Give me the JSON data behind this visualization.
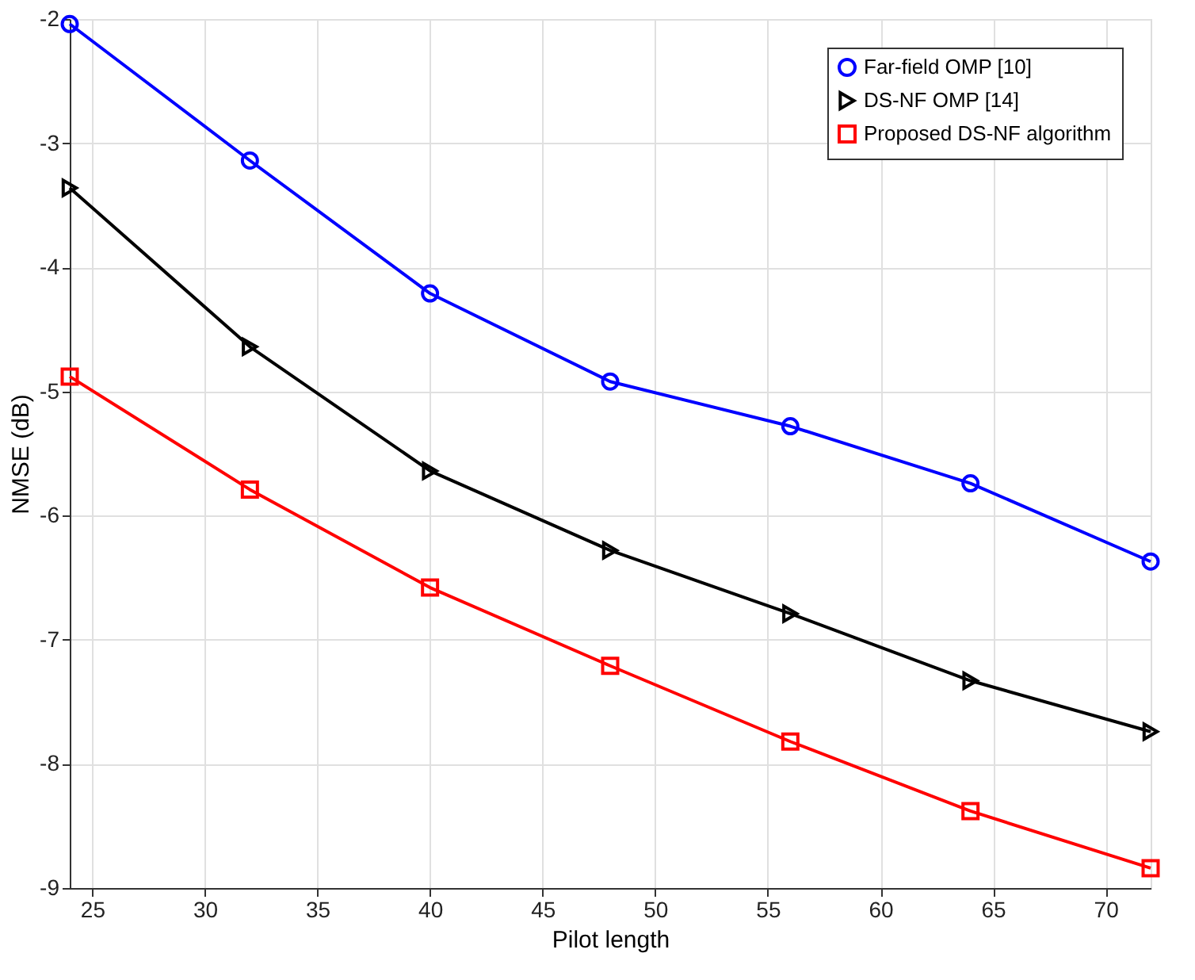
{
  "chart_data": {
    "type": "line",
    "xlabel": "Pilot length",
    "ylabel": "NMSE (dB)",
    "x": [
      24,
      32,
      40,
      48,
      56,
      64,
      72
    ],
    "series": [
      {
        "name": "Far-field OMP [10]",
        "color": "#0000ff",
        "marker": "circle",
        "values": [
          -2.04,
          -3.14,
          -4.21,
          -4.92,
          -5.28,
          -5.74,
          -6.37
        ]
      },
      {
        "name": "DS-NF OMP [14]",
        "color": "#000000",
        "marker": "triangle",
        "values": [
          -3.36,
          -4.64,
          -5.64,
          -6.28,
          -6.79,
          -7.33,
          -7.74
        ]
      },
      {
        "name": "Proposed DS-NF algorithm",
        "color": "#ff0000",
        "marker": "square",
        "values": [
          -4.88,
          -5.79,
          -6.58,
          -7.21,
          -7.82,
          -8.38,
          -8.84
        ]
      }
    ],
    "xlim": [
      24,
      72
    ],
    "xticks": [
      25,
      30,
      35,
      40,
      45,
      50,
      55,
      60,
      65,
      70
    ],
    "ylim": [
      -9,
      -2
    ],
    "yticks": [
      -9,
      -8,
      -7,
      -6,
      -5,
      -4,
      -3,
      -2
    ],
    "grid": true,
    "legend": "top right",
    "line_style": "solid"
  }
}
